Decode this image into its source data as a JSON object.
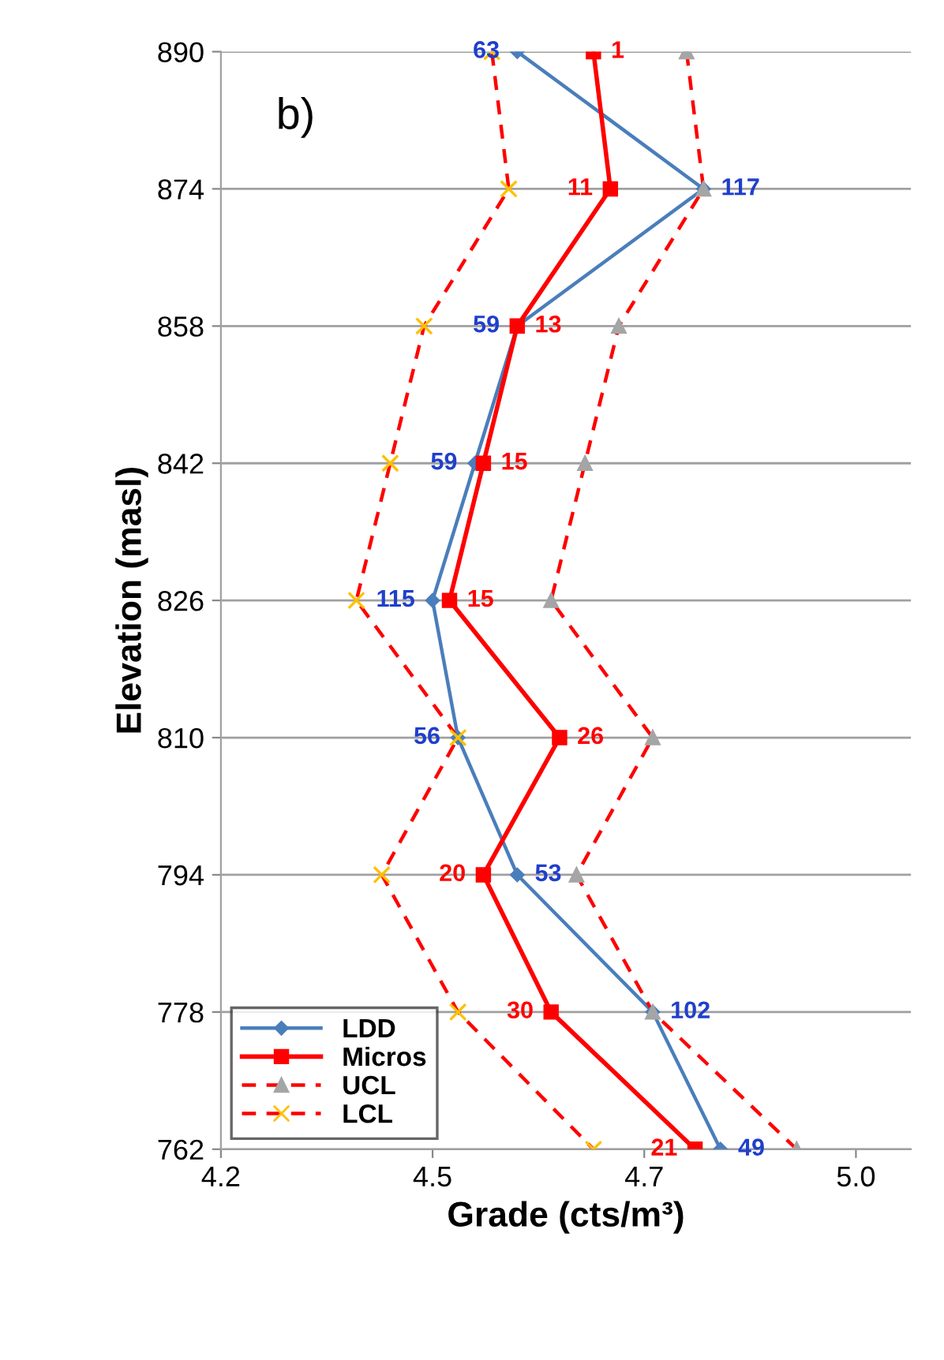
{
  "chart_data": {
    "type": "line",
    "orientation": "horizontal",
    "xlabel": "Grade (cts/m³)",
    "ylabel": "Elevation (masl)",
    "categories": [
      "890",
      "874",
      "858",
      "842",
      "826",
      "810",
      "794",
      "778",
      "762"
    ],
    "annotations": [
      "b)",
      {
        "text": "63",
        "x": 4.55,
        "y": "890"
      },
      {
        "text": "1",
        "x": 4.64,
        "y": "890"
      },
      {
        "text": "11",
        "x": 4.66,
        "y": "874"
      },
      {
        "text": "117",
        "x": 4.77,
        "y": "874"
      },
      {
        "text": "59",
        "x": 4.55,
        "y": "858"
      },
      {
        "text": "13",
        "x": 4.55,
        "y": "858"
      },
      {
        "text": "59",
        "x": 4.5,
        "y": "842"
      },
      {
        "text": "15",
        "x": 4.51,
        "y": "842"
      },
      {
        "text": "115",
        "x": 4.45,
        "y": "826"
      },
      {
        "text": "15",
        "x": 4.47,
        "y": "826"
      },
      {
        "text": "56",
        "x": 4.48,
        "y": "810"
      },
      {
        "text": "26",
        "x": 4.6,
        "y": "810"
      },
      {
        "text": "20",
        "x": 4.51,
        "y": "794"
      },
      {
        "text": "53",
        "x": 4.55,
        "y": "794"
      },
      {
        "text": "30",
        "x": 4.59,
        "y": "778"
      },
      {
        "text": "102",
        "x": 4.71,
        "y": "778"
      },
      {
        "text": "21",
        "x": 4.76,
        "y": "762"
      },
      {
        "text": "49",
        "x": 4.79,
        "y": "762"
      }
    ],
    "series": [
      {
        "name": "LDD",
        "color": "#4a7ebb",
        "marker": "diamond",
        "line_style": "solid",
        "values": [
          4.55,
          4.77,
          4.55,
          4.5,
          4.45,
          4.48,
          4.55,
          4.71,
          4.79
        ]
      },
      {
        "name": "Micros",
        "color": "#ff0000",
        "marker": "square",
        "line_style": "solid",
        "values": [
          4.64,
          4.66,
          4.55,
          4.51,
          4.47,
          4.6,
          4.51,
          4.59,
          4.76
        ]
      },
      {
        "name": "UCL",
        "color": "#ff0000",
        "colors": [
          "#a5a5a5",
          "#a5a5a5",
          "#a5a5a5",
          "#a5a5a5",
          "#a5a5a5",
          "#a5a5a5",
          "#a5a5a5",
          "#a5a5a5",
          "#a5a5a5"
        ],
        "marker": "triangle",
        "line_style": "dashed",
        "values": [
          4.75,
          4.77,
          4.67,
          4.63,
          4.59,
          4.71,
          4.62,
          4.71,
          4.88
        ]
      },
      {
        "name": "LCL",
        "color": "#ff0000",
        "colors": [
          "#ffc000",
          "#ffc000",
          "#ffc000",
          "#ffc000",
          "#ffc000",
          "#ffc000",
          "#ffc000",
          "#ffc000",
          "#ffc000"
        ],
        "marker": "cross",
        "line_style": "dashed",
        "values": [
          4.52,
          4.54,
          4.44,
          4.4,
          4.36,
          4.48,
          4.39,
          4.48,
          4.64
        ]
      }
    ],
    "xlim": [
      4.2,
      5.015
    ],
    "xticks": [
      4.2,
      {
        "value": 4.45,
        "label": "4.5"
      },
      4.7,
      {
        "value": 4.95,
        "label": "5.0"
      }
    ],
    "grid": "y",
    "legend": "bottom left"
  }
}
